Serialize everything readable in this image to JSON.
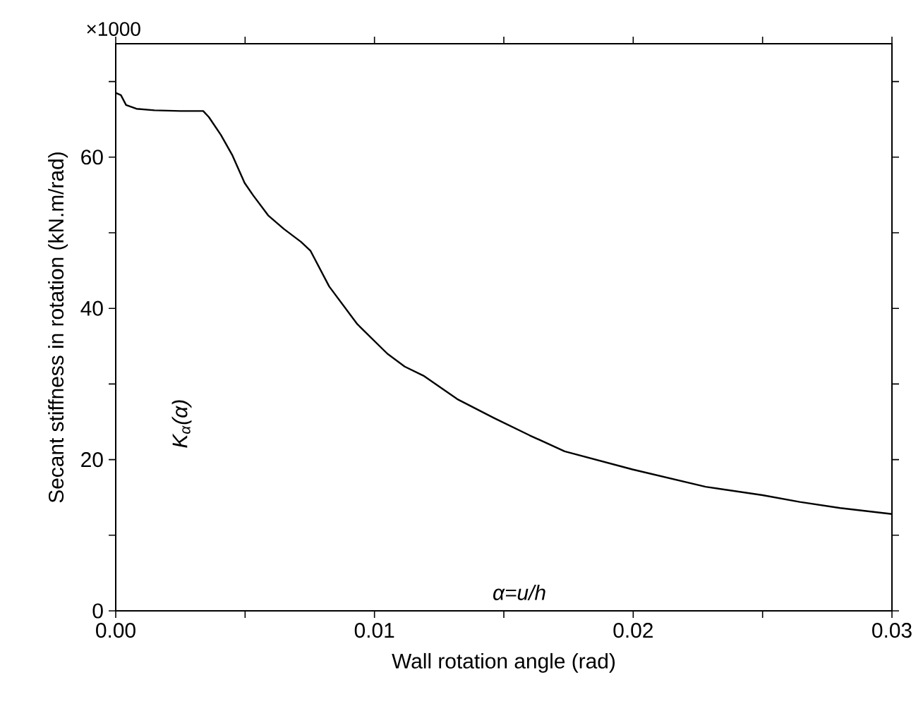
{
  "chart_data": {
    "type": "line",
    "xlabel": "Wall rotation angle (rad)",
    "ylabel": "Secant stiffness in rotation (kN.m/rad)",
    "annotations": [
      "×1000",
      "K$_{α}$(α)",
      "α=u/h"
    ],
    "x": [
      0,
      0.0002,
      0.0004,
      0.0008,
      0.0015,
      0.0025,
      0.00338,
      0.0036,
      0.00407,
      0.0045,
      0.00498,
      0.0053,
      0.00589,
      0.0065,
      0.00716,
      0.00753,
      0.00825,
      0.00934,
      0.0105,
      0.01117,
      0.01189,
      0.0132,
      0.01462,
      0.016,
      0.01735,
      0.01997,
      0.0228,
      0.025,
      0.02644,
      0.028,
      0.03
    ],
    "series": [
      {
        "color": "#000000",
        "values": [
          68.5,
          68.2,
          66.9,
          66.4,
          66.2,
          66.1,
          66.1,
          65.3,
          62.9,
          60.3,
          56.6,
          55.0,
          52.3,
          50.5,
          48.8,
          47.6,
          42.9,
          37.9,
          34.0,
          32.3,
          31.1,
          28.0,
          25.5,
          23.2,
          21.1,
          18.7,
          16.4,
          15.3,
          14.4,
          13.6,
          12.8
        ]
      }
    ],
    "xlim": [
      0,
      0.03
    ],
    "ylim": [
      0,
      75
    ],
    "xticks": [
      {
        "value": 0,
        "label": "0.00"
      },
      {
        "value": 0.005,
        "label": null
      },
      {
        "value": 0.01,
        "label": "0.01"
      },
      {
        "value": 0.015,
        "label": null
      },
      {
        "value": 0.02,
        "label": "0.02"
      },
      {
        "value": 0.025,
        "label": null
      },
      {
        "value": 0.03,
        "label": "0.03"
      }
    ],
    "yticks": [
      0,
      {
        "value": 10,
        "label": null
      },
      20,
      {
        "value": 30,
        "label": null
      },
      40,
      {
        "value": 50,
        "label": null
      },
      60,
      {
        "value": 70,
        "label": null
      }
    ],
    "grid": false,
    "marker": "none",
    "line_style": "solid"
  }
}
